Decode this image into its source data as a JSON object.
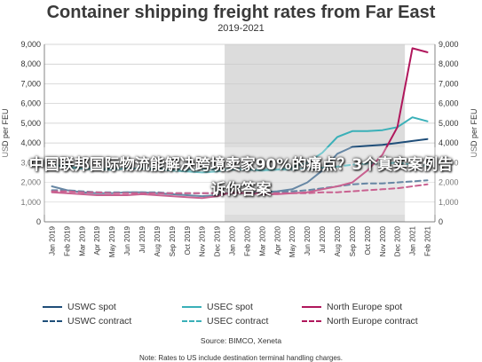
{
  "overlay": {
    "text": "中国联邦国际物流能解决跨境卖家90%的痛点？3个真实案例告诉你答案"
  },
  "chart_data": {
    "type": "line",
    "title": "Container shipping freight rates from Far East",
    "subtitle": "2019-2021",
    "ylabel": "USD per FEU",
    "ylim": [
      0,
      9000
    ],
    "yticks": [
      0,
      1000,
      2000,
      3000,
      4000,
      5000,
      6000,
      7000,
      8000,
      9000
    ],
    "ytick_labels": [
      "0",
      "1,000",
      "2,000",
      "3,000",
      "4,000",
      "5,000",
      "6,000",
      "7,000",
      "8,000",
      "9,000"
    ],
    "categories": [
      "Jan 2019",
      "Feb 2019",
      "Mar 2019",
      "Apr 2019",
      "May 2019",
      "Jun 2019",
      "Jul 2019",
      "Aug 2019",
      "Sep 2019",
      "Oct 2019",
      "Nov 2019",
      "Dec 2019",
      "Jan 2020",
      "Feb 2020",
      "Mar 2020",
      "Apr 2020",
      "May 2020",
      "Jun 2020",
      "Jul 2020",
      "Aug 2020",
      "Sep 2020",
      "Oct 2020",
      "Nov 2020",
      "Dec 2020",
      "Jan 2021",
      "Feb 2021"
    ],
    "shaded_region": [
      "Jan 2020",
      "Dec 2020"
    ],
    "grid": true,
    "series": [
      {
        "name": "USWC spot",
        "color": "#1f4e79",
        "dash": "solid",
        "values": [
          1800,
          1600,
          1500,
          1450,
          1450,
          1500,
          1500,
          1450,
          1400,
          1350,
          1300,
          1350,
          1500,
          1450,
          1500,
          1550,
          1650,
          2000,
          2600,
          3450,
          3800,
          3850,
          3900,
          4000,
          4100,
          4200
        ]
      },
      {
        "name": "USWC contract",
        "color": "#1f4e79",
        "dash": "dashed",
        "values": [
          1600,
          1600,
          1550,
          1500,
          1500,
          1500,
          1500,
          1500,
          1450,
          1450,
          1450,
          1450,
          1450,
          1450,
          1500,
          1500,
          1550,
          1600,
          1700,
          1800,
          1900,
          1950,
          1950,
          2000,
          2050,
          2100
        ]
      },
      {
        "name": "USEC spot",
        "color": "#3ab0b8",
        "dash": "solid",
        "values": [
          2900,
          2800,
          2700,
          2650,
          2650,
          2700,
          2700,
          2650,
          2600,
          2550,
          2500,
          2550,
          2700,
          2650,
          2600,
          2650,
          2750,
          3000,
          3500,
          4300,
          4600,
          4600,
          4650,
          4800,
          5300,
          5100
        ]
      },
      {
        "name": "USEC contract",
        "color": "#3ab0b8",
        "dash": "dashed",
        "values": [
          2750,
          2750,
          2700,
          2700,
          2700,
          2700,
          2700,
          2700,
          2650,
          2650,
          2650,
          2650,
          2650,
          2650,
          2650,
          2650,
          2650,
          2700,
          2750,
          2800,
          2900,
          2950,
          2950,
          3000,
          2900,
          2850
        ]
      },
      {
        "name": "North Europe spot",
        "color": "#b0175c",
        "dash": "solid",
        "values": [
          1500,
          1450,
          1400,
          1350,
          1350,
          1350,
          1400,
          1350,
          1300,
          1250,
          1200,
          1300,
          1500,
          1450,
          1400,
          1400,
          1450,
          1500,
          1650,
          1800,
          2000,
          2600,
          3400,
          4800,
          8800,
          8600
        ]
      },
      {
        "name": "North Europe contract",
        "color": "#b0175c",
        "dash": "dashed",
        "values": [
          1550,
          1550,
          1500,
          1500,
          1450,
          1450,
          1450,
          1450,
          1450,
          1450,
          1450,
          1450,
          1450,
          1450,
          1450,
          1450,
          1450,
          1450,
          1500,
          1500,
          1550,
          1600,
          1650,
          1700,
          1800,
          1900
        ]
      }
    ]
  },
  "legend": [
    {
      "label": "USWC spot",
      "color": "#1f4e79",
      "style": "solid"
    },
    {
      "label": "USEC spot",
      "color": "#3ab0b8",
      "style": "solid"
    },
    {
      "label": "North Europe spot",
      "color": "#b0175c",
      "style": "solid"
    },
    {
      "label": "USWC contract",
      "color": "#1f4e79",
      "style": "dashed"
    },
    {
      "label": "USEC contract",
      "color": "#3ab0b8",
      "style": "dashed"
    },
    {
      "label": "North Europe contract",
      "color": "#b0175c",
      "style": "dashed"
    }
  ],
  "source": "Source: BIMCO, Xeneta",
  "note": "Note: Rates to US include destination terminal handling charges."
}
